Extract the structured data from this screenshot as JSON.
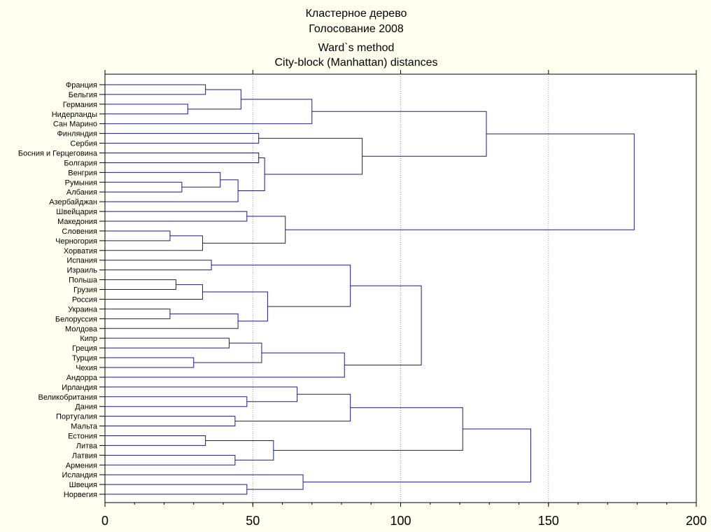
{
  "chart_data": {
    "type": "dendrogram",
    "title_lines": [
      "Кластерное дерево",
      "Голосование 2008",
      "Ward`s method",
      "City-block (Manhattan) distances"
    ],
    "xlim": [
      0,
      200
    ],
    "x_ticks": [
      0,
      50,
      100,
      150,
      200
    ],
    "grid": true,
    "orientation": "horizontal",
    "leaves": [
      "Франция",
      "Бельгия",
      "Германия",
      "Нидерланды",
      "Сан Марино",
      "Финляндия",
      "Сербия",
      "Босния и Герцеговина",
      "Болгария",
      "Венгрия",
      "Румыния",
      "Албания",
      "Азербайджан",
      "Швейцария",
      "Македония",
      "Словения",
      "Черногория",
      "Хорватия",
      "Испания",
      "Израиль",
      "Польша",
      "Грузия",
      "Россия",
      "Украина",
      "Белоруссия",
      "Молдова",
      "Кипр",
      "Греция",
      "Турция",
      "Чехия",
      "Андорра",
      "Ирландия",
      "Великобритания",
      "Дания",
      "Португалия",
      "Мальта",
      "Естония",
      "Литва",
      "Латвия",
      "Армения",
      "Исландия",
      "Швеция",
      "Норвегия"
    ],
    "merges": [
      {
        "id": "m1",
        "a": "L0",
        "b": "L1",
        "height": 34
      },
      {
        "id": "m2",
        "a": "L2",
        "b": "L3",
        "height": 28
      },
      {
        "id": "m3",
        "a": "m1",
        "b": "m2",
        "height": 46
      },
      {
        "id": "m4",
        "a": "m3",
        "b": "L4",
        "height": 70
      },
      {
        "id": "m5",
        "a": "L5",
        "b": "L6",
        "height": 52
      },
      {
        "id": "m6",
        "a": "L7",
        "b": "L8",
        "height": 52
      },
      {
        "id": "m7",
        "a": "L10",
        "b": "L11",
        "height": 26
      },
      {
        "id": "m8",
        "a": "L9",
        "b": "m7",
        "height": 39
      },
      {
        "id": "m9",
        "a": "m8",
        "b": "L12",
        "height": 45
      },
      {
        "id": "m10",
        "a": "m6",
        "b": "m9",
        "height": 54
      },
      {
        "id": "m11",
        "a": "m5",
        "b": "m10",
        "height": 87
      },
      {
        "id": "m12",
        "a": "m4",
        "b": "m11",
        "height": 129
      },
      {
        "id": "m13",
        "a": "L13",
        "b": "L14",
        "height": 48
      },
      {
        "id": "m14",
        "a": "L15",
        "b": "L16",
        "height": 22
      },
      {
        "id": "m15",
        "a": "m14",
        "b": "L17",
        "height": 33
      },
      {
        "id": "m16",
        "a": "m13",
        "b": "m15",
        "height": 61
      },
      {
        "id": "m17",
        "a": "m12",
        "b": "m16",
        "height": 179
      },
      {
        "id": "m18",
        "a": "L18",
        "b": "L19",
        "height": 36
      },
      {
        "id": "m19",
        "a": "L20",
        "b": "L21",
        "height": 24
      },
      {
        "id": "m20",
        "a": "m19",
        "b": "L22",
        "height": 33
      },
      {
        "id": "m21",
        "a": "L23",
        "b": "L24",
        "height": 22
      },
      {
        "id": "m22",
        "a": "m21",
        "b": "L25",
        "height": 45
      },
      {
        "id": "m23",
        "a": "m20",
        "b": "m22",
        "height": 55
      },
      {
        "id": "m24",
        "a": "m18",
        "b": "m23",
        "height": 83
      },
      {
        "id": "m25",
        "a": "L26",
        "b": "L27",
        "height": 42
      },
      {
        "id": "m26",
        "a": "L28",
        "b": "L29",
        "height": 30
      },
      {
        "id": "m27",
        "a": "m25",
        "b": "m26",
        "height": 53
      },
      {
        "id": "m28",
        "a": "m27",
        "b": "L30",
        "height": 81
      },
      {
        "id": "m29",
        "a": "m24",
        "b": "m28",
        "height": 107
      },
      {
        "id": "m30",
        "a": "L32",
        "b": "L33",
        "height": 48
      },
      {
        "id": "m31",
        "a": "L31",
        "b": "m30",
        "height": 65
      },
      {
        "id": "m32",
        "a": "L34",
        "b": "L35",
        "height": 44
      },
      {
        "id": "m33",
        "a": "m31",
        "b": "m32",
        "height": 83
      },
      {
        "id": "m34",
        "a": "L36",
        "b": "L37",
        "height": 34
      },
      {
        "id": "m35",
        "a": "L38",
        "b": "L39",
        "height": 44
      },
      {
        "id": "m36",
        "a": "m34",
        "b": "m35",
        "height": 57
      },
      {
        "id": "m37",
        "a": "m33",
        "b": "m36",
        "height": 121
      },
      {
        "id": "m38",
        "a": "L41",
        "b": "L42",
        "height": 48
      },
      {
        "id": "m39",
        "a": "L40",
        "b": "m38",
        "height": 67
      },
      {
        "id": "m40",
        "a": "m37",
        "b": "m39",
        "height": 144
      }
    ]
  },
  "colors": {
    "background": "#fffff0",
    "plot_background": "#ffffff",
    "link": "#1a1a80",
    "grid": "#9a9ab8",
    "axis": "#000000"
  }
}
